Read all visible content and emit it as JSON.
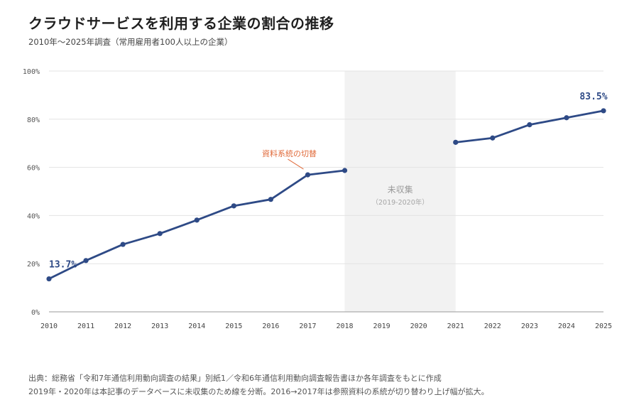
{
  "chart_data": {
    "type": "line",
    "title": "クラウドサービスを利用する企業の割合の推移",
    "subtitle": "2010年～2025年調査（常用雇用者100人以上の企業）",
    "x_categories": [
      "2010",
      "2011",
      "2012",
      "2013",
      "2014",
      "2015",
      "2016",
      "2017",
      "2018",
      "2019",
      "2020",
      "2021",
      "2022",
      "2023",
      "2024",
      "2025"
    ],
    "y_ticks": [
      "0%",
      "20%",
      "40%",
      "60%",
      "80%",
      "100%"
    ],
    "ylim": [
      0,
      100
    ],
    "grid": true,
    "series": [
      {
        "color": "#2e4a86",
        "segments": [
          {
            "x": [
              "2010",
              "2011",
              "2012",
              "2013",
              "2014",
              "2015",
              "2016",
              "2017",
              "2018"
            ],
            "values": [
              13.7,
              21.3,
              28.0,
              32.5,
              38.1,
              44.0,
              46.7,
              56.9,
              58.7
            ]
          },
          {
            "x": [
              "2021",
              "2022",
              "2023",
              "2024",
              "2025"
            ],
            "values": [
              70.4,
              72.2,
              77.7,
              80.6,
              83.5
            ]
          }
        ]
      }
    ],
    "data_labels": [
      {
        "x": "2010",
        "text": "13.7%"
      },
      {
        "x": "2025",
        "text": "83.5%"
      }
    ],
    "gap_band": {
      "from": "2018",
      "to": "2021",
      "label": "未収集",
      "sublabel": "（2019-2020年）",
      "color": "#f2f2f2"
    },
    "annotation": {
      "text": "資料系統の切替",
      "x": "2017",
      "color": "#e06a3a"
    }
  },
  "footer": {
    "line1": "出典：総務省「令和7年通信利用動向調査の結果」別紙1／令和6年通信利用動向調査報告書ほか各年調査をもとに作成",
    "line2": "2019年・2020年は本記事のデータベースに未収集のため線を分断。2016→2017年は参照資料の系統が切り替わり上げ幅が拡大。"
  }
}
